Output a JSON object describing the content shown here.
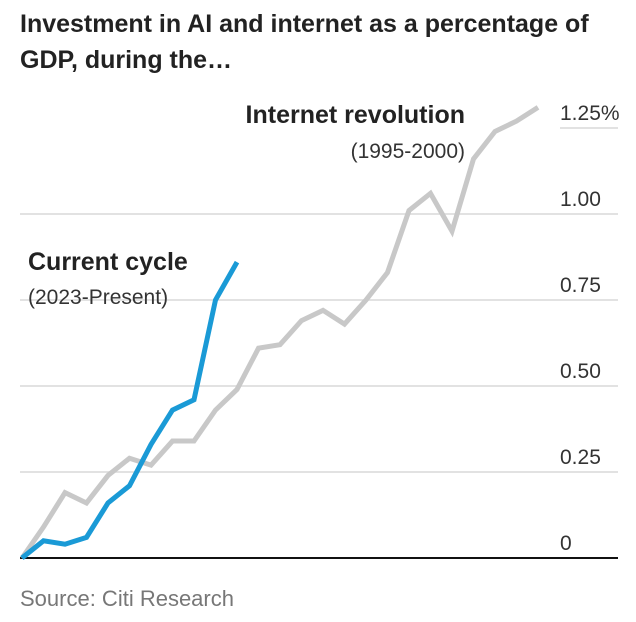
{
  "title": "Investment in AI and internet as a percentage of GDP, during the…",
  "source": "Source: Citi Research",
  "chart_data": {
    "type": "line",
    "title": "Investment in AI and internet as a percentage of GDP, during the…",
    "xlabel": "",
    "ylabel": "",
    "ylim": [
      0,
      1.25
    ],
    "y_ticks": [
      0,
      0.25,
      0.5,
      0.75,
      1.0,
      1.25
    ],
    "y_tick_labels": [
      "0",
      "0.25",
      "0.50",
      "0.75",
      "1.00",
      "1.25%"
    ],
    "grid": true,
    "series": [
      {
        "name": "Internet revolution",
        "sub": "(1995-2000)",
        "color": "#c8c8c8",
        "values": [
          0,
          0.09,
          0.19,
          0.16,
          0.24,
          0.29,
          0.27,
          0.34,
          0.34,
          0.43,
          0.49,
          0.61,
          0.62,
          0.69,
          0.72,
          0.68,
          0.75,
          0.83,
          1.01,
          1.06,
          0.95,
          1.16,
          1.24,
          1.27,
          1.31
        ]
      },
      {
        "name": "Current cycle",
        "sub": "(2023-Present)",
        "color": "#1a9ad6",
        "values": [
          0,
          0.05,
          0.04,
          0.06,
          0.16,
          0.21,
          0.33,
          0.43,
          0.46,
          0.75,
          0.86
        ]
      }
    ]
  }
}
